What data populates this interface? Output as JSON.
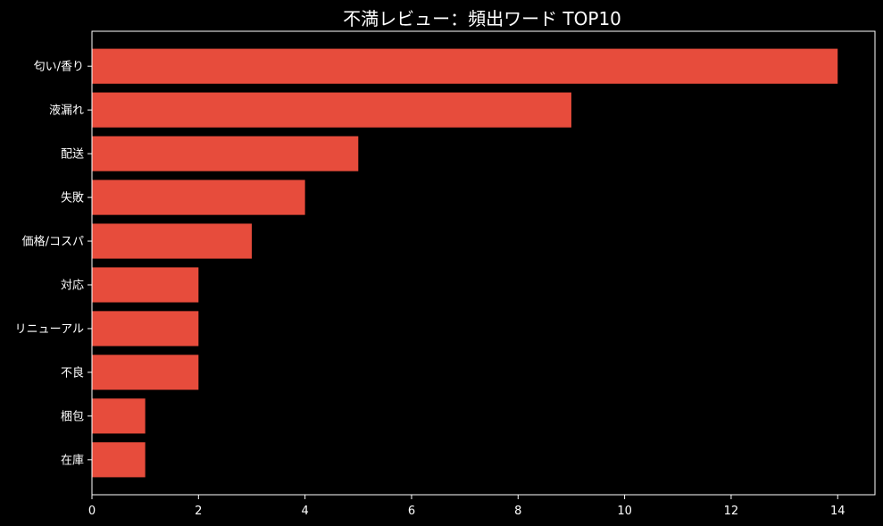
{
  "chart_data": {
    "type": "bar",
    "orientation": "horizontal",
    "title": "不満レビュー：頻出ワード TOP10",
    "xlabel": "",
    "ylabel": "",
    "categories": [
      "匂い/香り",
      "液漏れ",
      "配送",
      "失敗",
      "価格/コスパ",
      "対応",
      "リニューアル",
      "不良",
      "梱包",
      "在庫"
    ],
    "values": [
      14,
      9,
      5,
      4,
      3,
      2,
      2,
      2,
      1,
      1
    ],
    "xlim": [
      0,
      14.7
    ],
    "xticks": [
      0,
      2,
      4,
      6,
      8,
      10,
      12,
      14
    ],
    "grid": false,
    "legend": "none",
    "colors": {
      "background": "#000000",
      "bar": "#e74c3c",
      "axis": "#ffffff",
      "text": "#ffffff"
    }
  }
}
